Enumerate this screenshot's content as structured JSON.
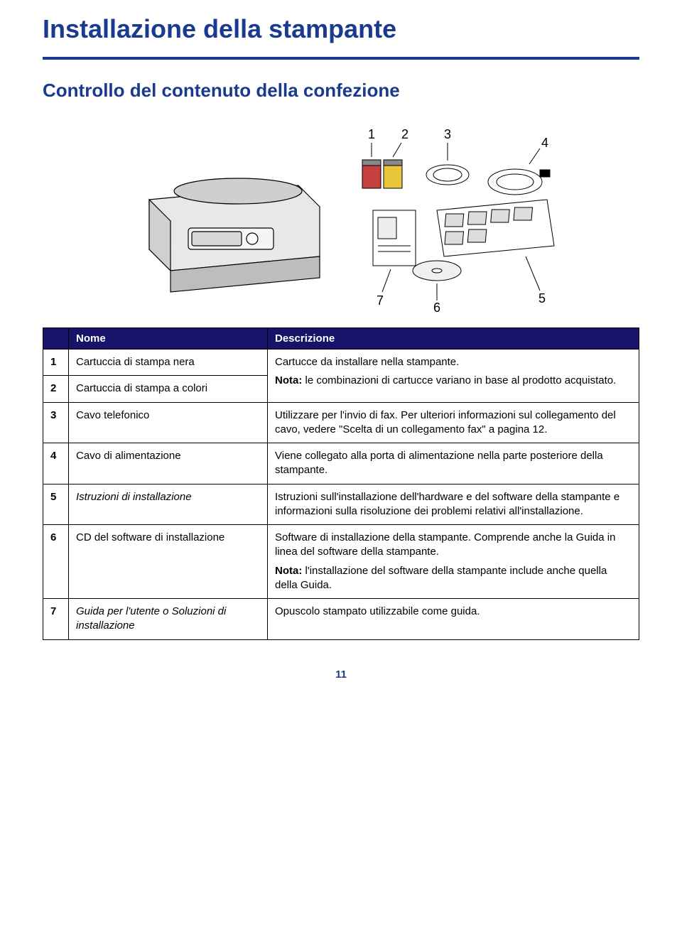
{
  "page": {
    "title": "Installazione della stampante",
    "sectionTitle": "Controllo del contenuto della confezione",
    "pageNumber": "11"
  },
  "colors": {
    "heading": "#1a3a8f",
    "tableHeaderBg": "#18136a",
    "tableHeaderText": "#ffffff",
    "border": "#000000",
    "bodyText": "#000000",
    "background": "#ffffff"
  },
  "diagram": {
    "labels": [
      "1",
      "2",
      "3",
      "4",
      "5",
      "6",
      "7"
    ]
  },
  "table": {
    "headers": {
      "name": "Nome",
      "description": "Descrizione"
    },
    "rows": [
      {
        "num": "1",
        "name": "Cartuccia di stampa nera",
        "descParts": [
          {
            "text": "Cartucce da installare nella stampante."
          }
        ],
        "mergeDescNext": true
      },
      {
        "num": "2",
        "name": "Cartuccia di stampa a colori",
        "descParts": [
          {
            "boldPrefix": "Nota:",
            "text": " le combinazioni di cartucce variano in base al prodotto acquistato."
          }
        ]
      },
      {
        "num": "3",
        "name": "Cavo telefonico",
        "descParts": [
          {
            "text": "Utilizzare per l'invio di fax. Per ulteriori informazioni sul collegamento del cavo, vedere \"Scelta di un collegamento fax\" a pagina 12."
          }
        ]
      },
      {
        "num": "4",
        "name": "Cavo di alimentazione",
        "descParts": [
          {
            "text": "Viene collegato alla porta di alimentazione nella parte posteriore della stampante."
          }
        ]
      },
      {
        "num": "5",
        "name": "Istruzioni di installazione",
        "nameItalic": true,
        "descParts": [
          {
            "text": "Istruzioni sull'installazione dell'hardware e del software della stampante e informazioni sulla risoluzione dei problemi relativi all'installazione."
          }
        ]
      },
      {
        "num": "6",
        "name": "CD del software di installazione",
        "descParts": [
          {
            "text": "Software di installazione della stampante. Comprende anche la Guida in linea del software della stampante."
          },
          {
            "boldPrefix": "Nota:",
            "text": " l'installazione del software della stampante include anche quella della Guida."
          }
        ]
      },
      {
        "num": "7",
        "name": "Guida per l'utente o Soluzioni di installazione",
        "nameItalic": true,
        "descParts": [
          {
            "text": "Opuscolo stampato utilizzabile come guida."
          }
        ]
      }
    ]
  }
}
